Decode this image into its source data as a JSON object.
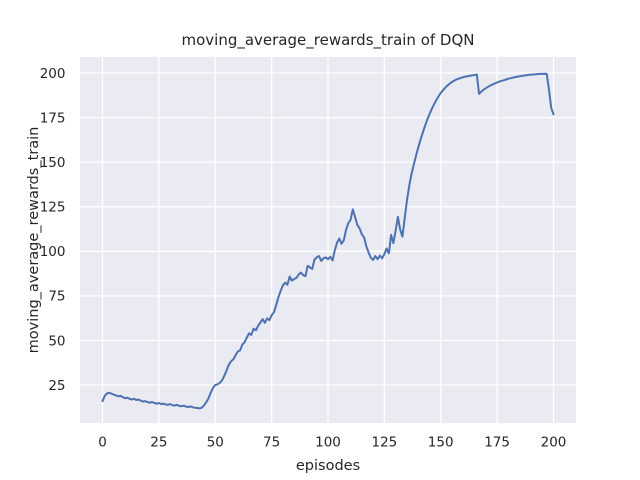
{
  "chart_data": {
    "type": "line",
    "title": "moving_average_rewards_train of DQN",
    "xlabel": "episodes",
    "ylabel": "moving_average_rewards_train",
    "x_ticks": [
      0,
      25,
      50,
      75,
      100,
      125,
      150,
      175,
      200
    ],
    "y_ticks": [
      25,
      50,
      75,
      100,
      125,
      150,
      175,
      200
    ],
    "xlim": [
      -10,
      210
    ],
    "ylim": [
      3.7,
      209
    ],
    "grid": true,
    "legend": false,
    "series": [
      {
        "name": "moving_average_rewards_train",
        "x_start": 0,
        "x_step": 1,
        "values": [
          16.0,
          19.0,
          20.3,
          20.6,
          20.2,
          19.6,
          19.2,
          18.6,
          18.9,
          18.2,
          17.6,
          17.9,
          17.3,
          16.9,
          17.3,
          16.6,
          16.9,
          16.2,
          15.7,
          16.0,
          15.4,
          15.1,
          15.5,
          14.9,
          14.6,
          14.9,
          14.3,
          14.6,
          14.1,
          13.9,
          14.3,
          13.7,
          13.5,
          13.9,
          13.3,
          13.1,
          13.4,
          12.9,
          12.7,
          13.0,
          12.5,
          12.3,
          12.1,
          11.9,
          12.3,
          13.6,
          15.4,
          17.6,
          20.8,
          23.4,
          25.0,
          25.4,
          26.2,
          27.6,
          30.2,
          33.1,
          36.4,
          38.3,
          39.4,
          41.8,
          43.8,
          44.4,
          47.6,
          49.0,
          51.6,
          54.0,
          53.1,
          56.6,
          55.7,
          58.2,
          60.1,
          61.9,
          59.9,
          62.4,
          61.4,
          64.1,
          65.8,
          69.7,
          74.2,
          77.9,
          80.9,
          82.4,
          81.3,
          85.9,
          83.6,
          84.5,
          85.1,
          87.0,
          88.1,
          86.6,
          86.1,
          91.9,
          91.0,
          90.1,
          95.4,
          96.6,
          97.4,
          94.6,
          96.1,
          96.6,
          95.6,
          96.9,
          94.9,
          100.5,
          104.8,
          107.2,
          104.3,
          106.2,
          111.9,
          115.8,
          117.5,
          123.5,
          119.2,
          114.8,
          112.9,
          109.6,
          107.8,
          102.9,
          99.3,
          96.4,
          95.2,
          97.3,
          95.6,
          97.6,
          96.1,
          98.4,
          101.6,
          98.9,
          109.2,
          104.6,
          111.5,
          119.3,
          112.4,
          108.2,
          118.6,
          128.4,
          136.6,
          143.2,
          148.4,
          153.4,
          158.1,
          162.4,
          166.4,
          170.2,
          173.8,
          176.9,
          179.8,
          182.4,
          184.8,
          186.9,
          188.8,
          190.4,
          191.8,
          193.0,
          194.1,
          195.0,
          195.8,
          196.4,
          196.9,
          197.3,
          197.7,
          198.0,
          198.3,
          198.5,
          198.7,
          198.9,
          199.2,
          188.3,
          189.6,
          190.7,
          191.5,
          192.3,
          193.0,
          193.6,
          194.2,
          194.7,
          195.2,
          195.6,
          196.0,
          196.4,
          196.8,
          197.1,
          197.4,
          197.7,
          198.0,
          198.2,
          198.4,
          198.6,
          198.8,
          199.0,
          199.1,
          199.2,
          199.3,
          199.4,
          199.5,
          199.5,
          199.6,
          199.5,
          191.0,
          180.5,
          176.8
        ]
      }
    ]
  },
  "style": {
    "figure_bg": "#ffffff",
    "axes_bg": "#eaeaf2",
    "grid_color": "#ffffff",
    "line_color": "#4c72b0",
    "text_color": "#262626"
  }
}
